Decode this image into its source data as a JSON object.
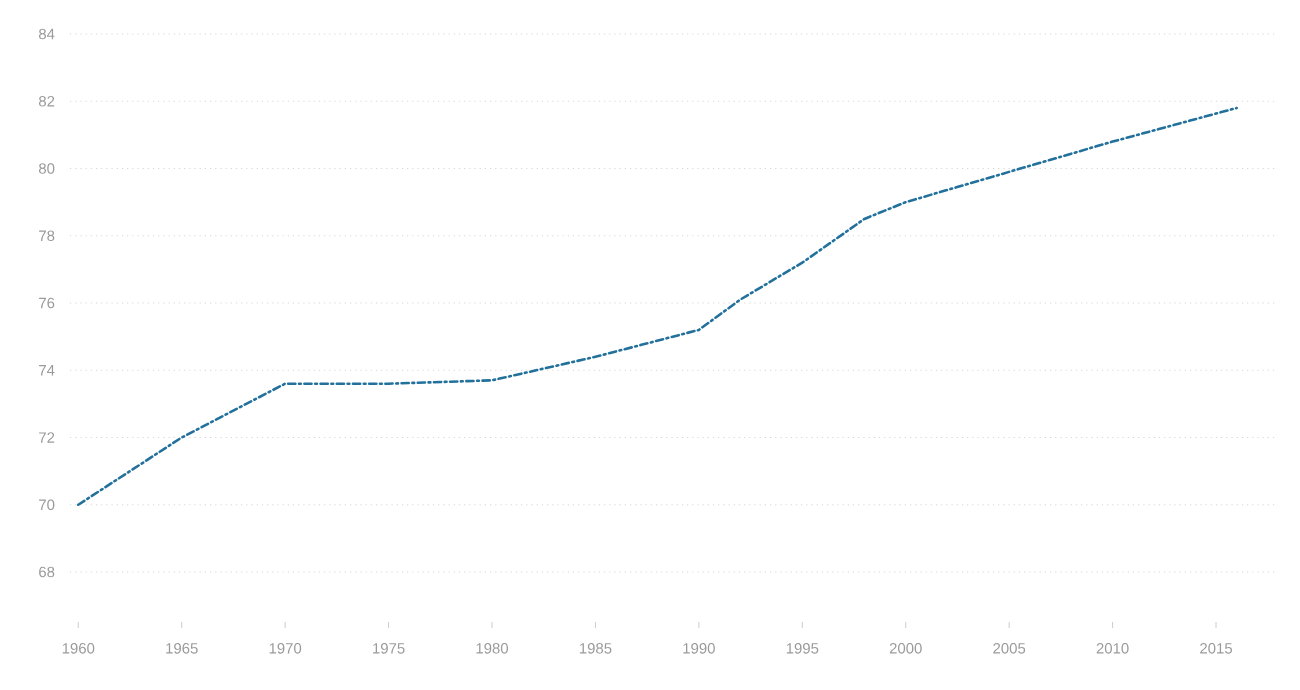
{
  "chart_data": {
    "type": "line",
    "x": [
      1960,
      1965,
      1970,
      1975,
      1980,
      1985,
      1990,
      1992,
      1995,
      1998,
      2000,
      2005,
      2010,
      2016
    ],
    "series": [
      {
        "color": "#22719c",
        "values": [
          70.0,
          72.0,
          73.6,
          73.6,
          73.7,
          74.4,
          75.2,
          76.1,
          77.2,
          78.5,
          79.0,
          79.9,
          80.8,
          81.8
        ]
      }
    ],
    "xlim": [
      1959.6,
      2017.9
    ],
    "ylim": [
      68,
      84
    ],
    "xticks": [
      1960,
      1965,
      1970,
      1975,
      1980,
      1985,
      1990,
      1995,
      2000,
      2005,
      2010,
      2015
    ],
    "yticks": [
      68,
      70,
      72,
      74,
      76,
      78,
      80,
      82,
      84
    ],
    "grid": "y",
    "line_style": "dashed"
  }
}
